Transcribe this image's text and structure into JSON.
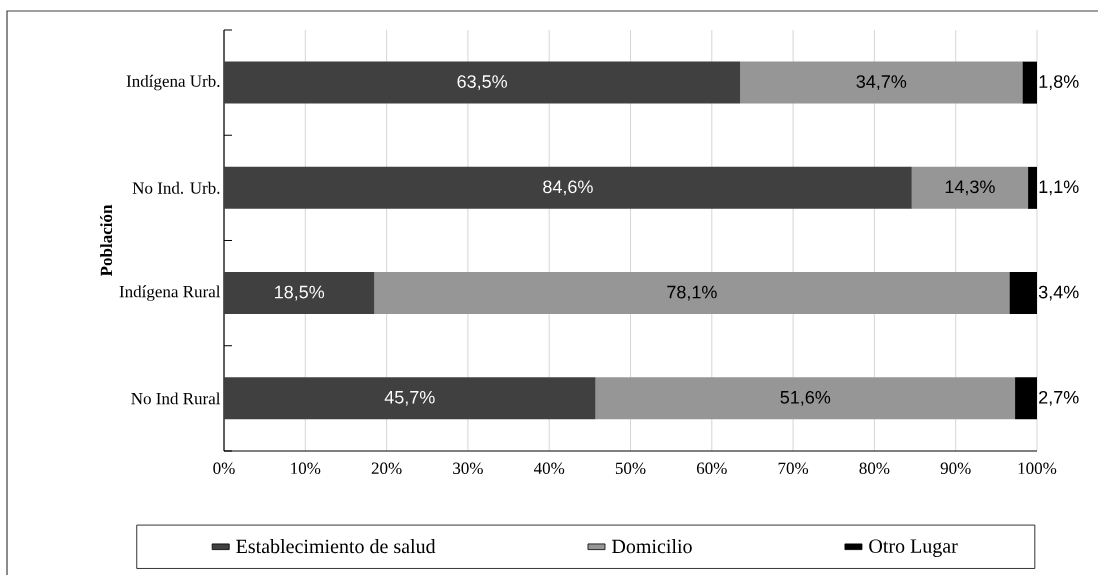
{
  "chart_data": {
    "type": "bar",
    "orientation": "horizontal",
    "stacked": true,
    "ylabel": "Población",
    "categories": [
      "Indígena Urb.",
      "No Ind. Urb.",
      "Indígena Rural",
      "No Ind Rural"
    ],
    "series": [
      {
        "name": "Establecimiento de salud",
        "color": "#404040",
        "values": [
          63.5,
          84.6,
          18.5,
          45.7
        ],
        "value_labels": [
          "63,5%",
          "84,6%",
          "18,5%",
          "45,7%"
        ]
      },
      {
        "name": "Domicilio",
        "color": "#969696",
        "values": [
          34.7,
          14.3,
          78.1,
          51.6
        ],
        "value_labels": [
          "34,7%",
          "14,3%",
          "78,1%",
          "51,6%"
        ]
      },
      {
        "name": "Otro Lugar",
        "color": "#000000",
        "values": [
          1.8,
          1.1,
          3.4,
          2.7
        ],
        "value_labels": [
          "1,8%",
          "1,1%",
          "3,4%",
          "2,7%"
        ]
      }
    ],
    "xlim": [
      0,
      100
    ],
    "xticks": [
      {
        "value": 0,
        "label": "0%"
      },
      {
        "value": 10,
        "label": "10%"
      },
      {
        "value": 20,
        "label": "20%"
      },
      {
        "value": 30,
        "label": "30%"
      },
      {
        "value": 40,
        "label": "40%"
      },
      {
        "value": 50,
        "label": "50%"
      },
      {
        "value": 60,
        "label": "60%"
      },
      {
        "value": 70,
        "label": "70%"
      },
      {
        "value": 80,
        "label": "80%"
      },
      {
        "value": 90,
        "label": "90%"
      },
      {
        "value": 100,
        "label": "100%"
      }
    ],
    "grid": "x",
    "legend": "bottom"
  }
}
